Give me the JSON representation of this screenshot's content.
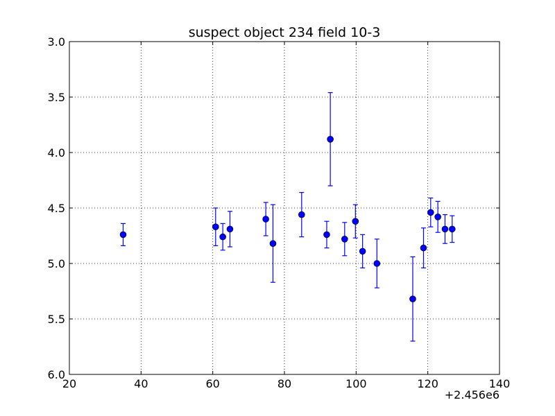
{
  "chart_data": {
    "type": "scatter",
    "title": "suspect object 234 field 10-3",
    "xlabel": "",
    "ylabel": "",
    "x_offset_label": "+2.456e6",
    "xlim": [
      20,
      140
    ],
    "ylim": [
      6.0,
      3.0
    ],
    "y_inverted": true,
    "grid": true,
    "x_ticks": [
      20,
      40,
      60,
      80,
      100,
      120,
      140
    ],
    "x_tick_labels": [
      "20",
      "40",
      "60",
      "80",
      "100",
      "120",
      "140"
    ],
    "y_ticks": [
      3.0,
      3.5,
      4.0,
      4.5,
      5.0,
      5.5,
      6.0
    ],
    "y_tick_labels": [
      "3.0",
      "3.5",
      "4.0",
      "4.5",
      "5.0",
      "5.5",
      "6.0"
    ],
    "series": [
      {
        "color": "#0000ff",
        "marker": "circle",
        "points": [
          {
            "x": 35.0,
            "y": 4.74,
            "err": 0.1
          },
          {
            "x": 60.8,
            "y": 4.67,
            "err": 0.17
          },
          {
            "x": 62.8,
            "y": 4.76,
            "err": 0.12
          },
          {
            "x": 64.8,
            "y": 4.69,
            "err": 0.16
          },
          {
            "x": 74.8,
            "y": 4.6,
            "err": 0.15
          },
          {
            "x": 76.8,
            "y": 4.82,
            "err": 0.35
          },
          {
            "x": 84.8,
            "y": 4.56,
            "err": 0.2
          },
          {
            "x": 91.8,
            "y": 4.74,
            "err": 0.12
          },
          {
            "x": 92.8,
            "y": 3.88,
            "err": 0.42
          },
          {
            "x": 96.8,
            "y": 4.78,
            "err": 0.15
          },
          {
            "x": 99.8,
            "y": 4.62,
            "err": 0.15
          },
          {
            "x": 101.8,
            "y": 4.89,
            "err": 0.15
          },
          {
            "x": 105.8,
            "y": 5.0,
            "err": 0.22
          },
          {
            "x": 115.8,
            "y": 5.32,
            "err": 0.38
          },
          {
            "x": 118.8,
            "y": 4.86,
            "err": 0.18
          },
          {
            "x": 120.8,
            "y": 4.54,
            "err": 0.13
          },
          {
            "x": 122.8,
            "y": 4.58,
            "err": 0.14
          },
          {
            "x": 124.8,
            "y": 4.69,
            "err": 0.13
          },
          {
            "x": 126.8,
            "y": 4.69,
            "err": 0.12
          }
        ]
      }
    ]
  }
}
